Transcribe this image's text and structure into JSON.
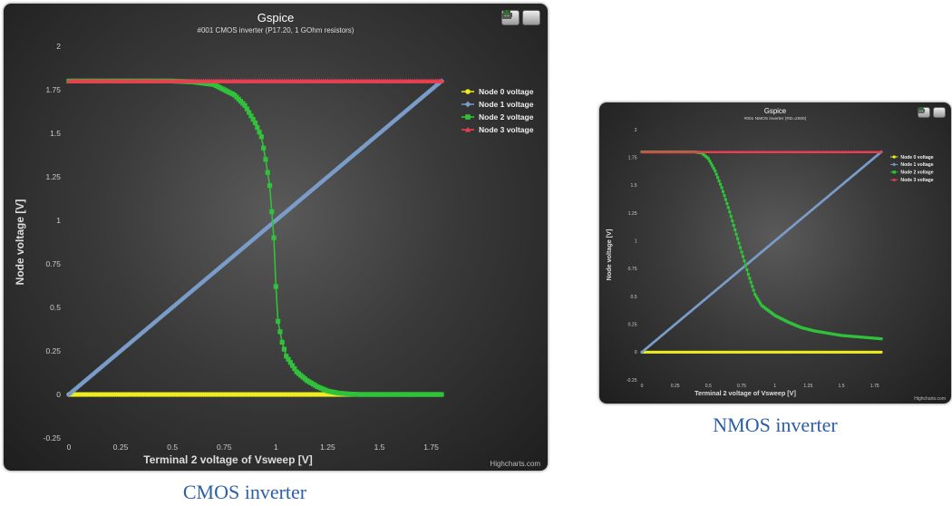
{
  "cmos": {
    "title": "Gspice",
    "subtitle": "#001 CMOS inverter (P17.20, 1 GOhm resistors)",
    "credit": "Highcharts.com",
    "caption": "CMOS inverter"
  },
  "nmos": {
    "title": "Gspice",
    "subtitle": "#001 NMOS inverter (RD=2000)",
    "credit": "Highcharts.com",
    "caption": "NMOS inverter"
  },
  "icons": [
    "print-icon",
    "export-icon"
  ],
  "chart_data": [
    {
      "type": "line",
      "title": "Gspice",
      "subtitle": "#001 CMOS inverter (P17.20, 1 GOhm resistors)",
      "xlabel": "Terminal 2 voltage of Vsweep [V]",
      "ylabel": "Node voltage [V]",
      "xlim": [
        0,
        1.8
      ],
      "ylim": [
        -0.25,
        2
      ],
      "xticks": [
        "0",
        "0.25",
        "0.5",
        "0.75",
        "1",
        "1.25",
        "1.5",
        "1.75"
      ],
      "yticks": [
        "-0.25",
        "0",
        "0.25",
        "0.5",
        "0.75",
        "1",
        "1.25",
        "1.5",
        "1.75",
        "2"
      ],
      "legend_position": "right",
      "grid": false,
      "series": [
        {
          "name": "Node 0 voltage",
          "color": "#ecec20",
          "marker": "circle",
          "x": [
            0,
            1.8
          ],
          "y": [
            0,
            0
          ]
        },
        {
          "name": "Node 1 voltage",
          "color": "#7a9cc8",
          "marker": "diamond",
          "x": [
            0,
            1.8
          ],
          "y": [
            0,
            1.8
          ]
        },
        {
          "name": "Node 2 voltage",
          "color": "#2fc23a",
          "marker": "square",
          "x": [
            0,
            0.5,
            0.6,
            0.7,
            0.8,
            0.85,
            0.9,
            0.93,
            0.95,
            0.97,
            0.98,
            0.99,
            1.0,
            1.01,
            1.03,
            1.05,
            1.1,
            1.15,
            1.2,
            1.25,
            1.3,
            1.35,
            1.4,
            1.8
          ],
          "y": [
            1.8,
            1.8,
            1.795,
            1.78,
            1.72,
            1.66,
            1.56,
            1.48,
            1.35,
            1.2,
            1.05,
            0.9,
            0.62,
            0.42,
            0.3,
            0.22,
            0.13,
            0.08,
            0.045,
            0.02,
            0.008,
            0.003,
            0.0,
            0.0
          ]
        },
        {
          "name": "Node 3 voltage",
          "color": "#e84050",
          "marker": "triangle",
          "x": [
            0,
            1.8
          ],
          "y": [
            1.8,
            1.8
          ]
        }
      ]
    },
    {
      "type": "line",
      "title": "Gspice",
      "subtitle": "#001 NMOS inverter (RD=2000)",
      "xlabel": "Terminal 2 voltage of Vsweep [V]",
      "ylabel": "Node voltage [V]",
      "xlim": [
        0,
        1.8
      ],
      "ylim": [
        -0.25,
        2
      ],
      "xticks": [
        "0",
        "0.25",
        "0.5",
        "0.75",
        "1",
        "1.25",
        "1.5",
        "1.75"
      ],
      "yticks": [
        "-0.25",
        "0",
        "0.25",
        "0.5",
        "0.75",
        "1",
        "1.25",
        "1.5",
        "1.75",
        "2"
      ],
      "legend_position": "right",
      "grid": false,
      "series": [
        {
          "name": "Node 0 voltage",
          "color": "#ecec20",
          "marker": "circle",
          "x": [
            0,
            1.8
          ],
          "y": [
            0,
            0
          ]
        },
        {
          "name": "Node 1 voltage",
          "color": "#7a9cc8",
          "marker": "diamond",
          "x": [
            0,
            1.8
          ],
          "y": [
            0,
            1.8
          ]
        },
        {
          "name": "Node 2 voltage",
          "color": "#2fc23a",
          "marker": "square",
          "x": [
            0,
            0.4,
            0.45,
            0.5,
            0.55,
            0.6,
            0.65,
            0.7,
            0.75,
            0.8,
            0.85,
            0.9,
            1.0,
            1.1,
            1.2,
            1.3,
            1.4,
            1.5,
            1.6,
            1.7,
            1.8
          ],
          "y": [
            1.8,
            1.8,
            1.79,
            1.74,
            1.63,
            1.48,
            1.3,
            1.1,
            0.9,
            0.7,
            0.52,
            0.42,
            0.33,
            0.27,
            0.22,
            0.19,
            0.17,
            0.15,
            0.14,
            0.13,
            0.12
          ]
        },
        {
          "name": "Node 3 voltage",
          "color": "#e84050",
          "marker": "triangle",
          "x": [
            0,
            1.8
          ],
          "y": [
            1.8,
            1.8
          ]
        }
      ]
    }
  ]
}
